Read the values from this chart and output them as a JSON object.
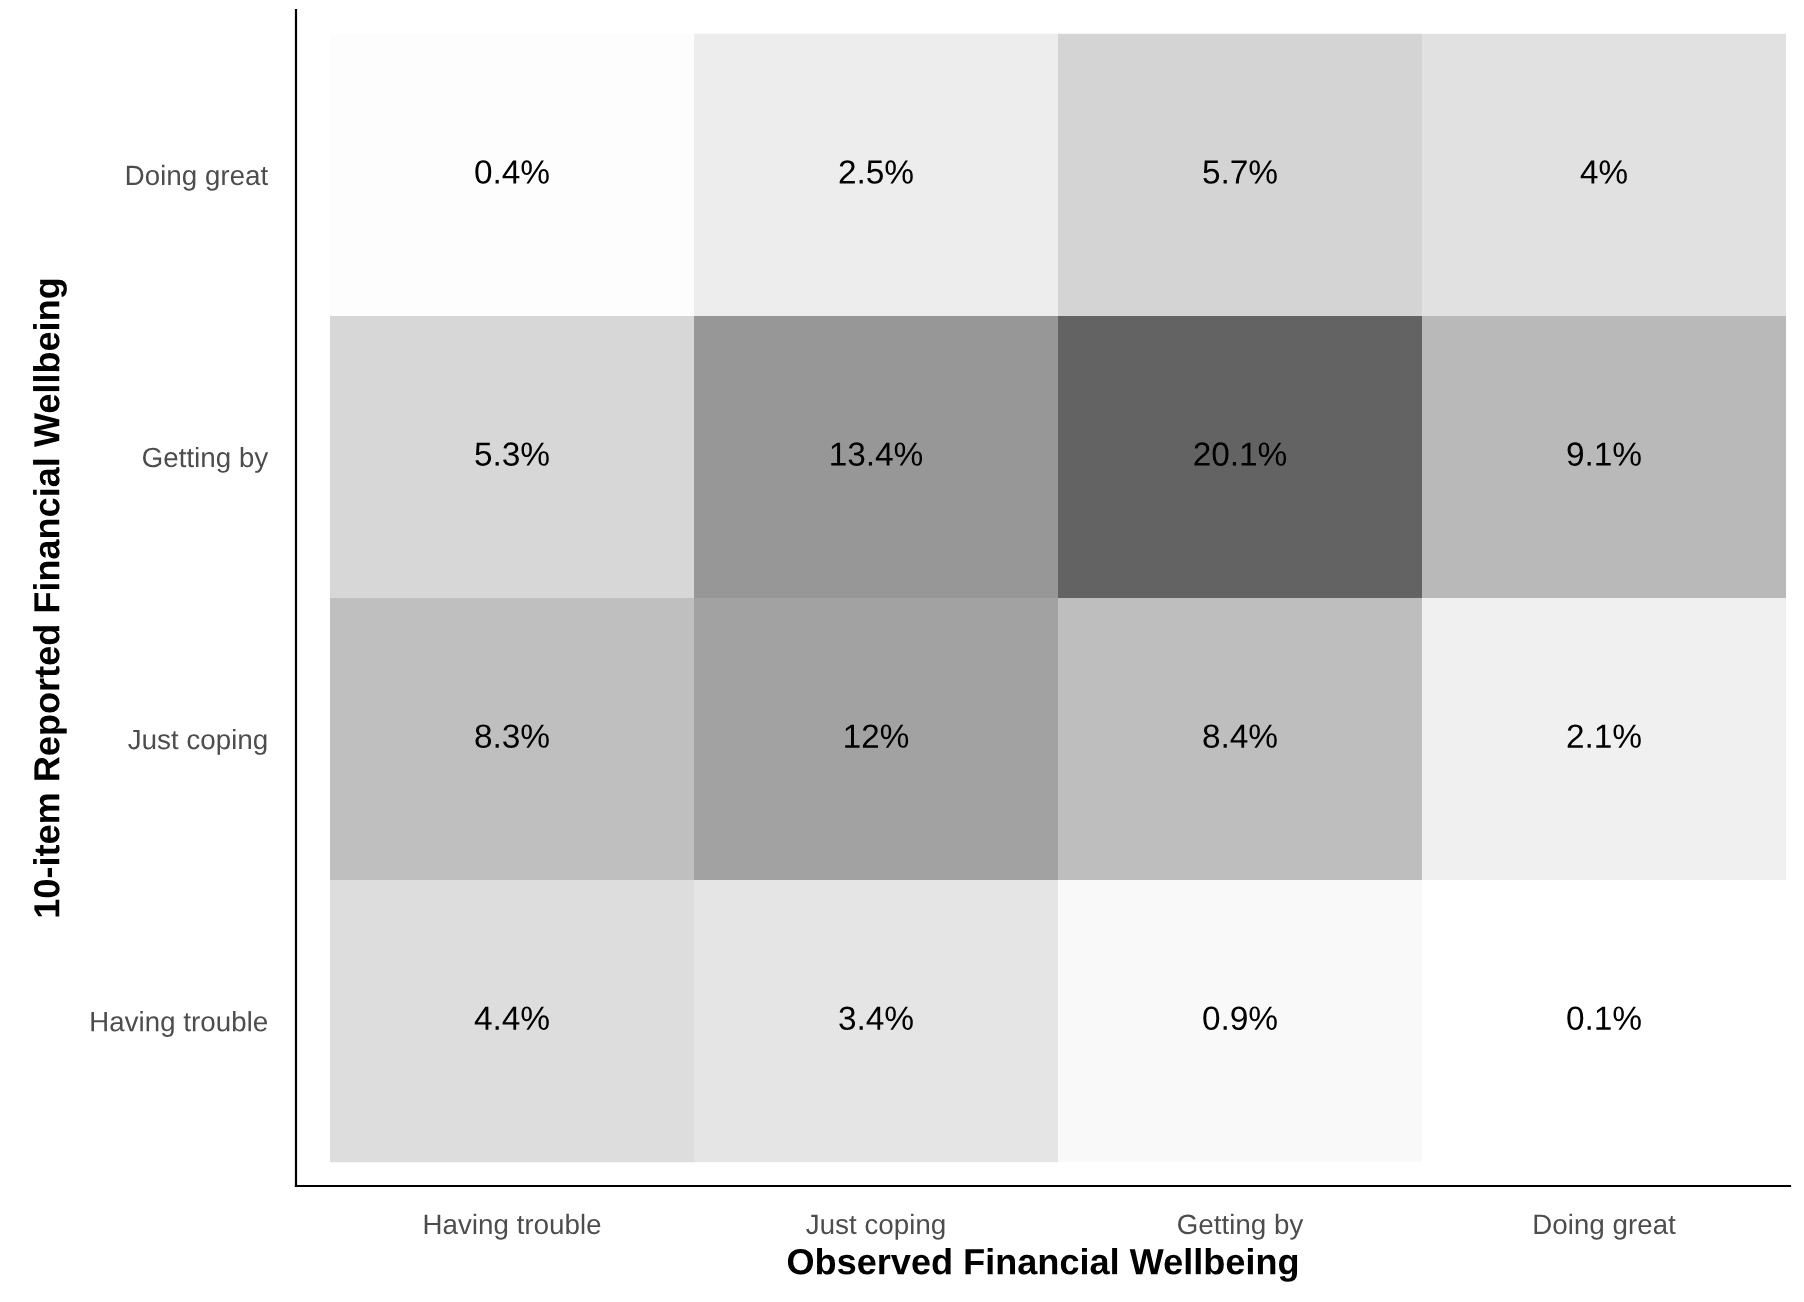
{
  "chart_data": {
    "type": "heatmap",
    "xlabel": "Observed Financial Wellbeing",
    "ylabel": "10-item Reported Financial Wellbeing",
    "categories": [
      "Having trouble",
      "Just coping",
      "Getting by",
      "Doing great"
    ],
    "y_categories": [
      "Doing great",
      "Getting by",
      "Just coping",
      "Having trouble"
    ],
    "cells": [
      [
        0.4,
        2.5,
        5.7,
        4
      ],
      [
        5.3,
        13.4,
        20.1,
        9.1
      ],
      [
        8.3,
        12,
        8.4,
        2.1
      ],
      [
        4.4,
        3.4,
        0.9,
        0.1
      ]
    ],
    "cell_labels": [
      [
        "0.4%",
        "2.5%",
        "5.7%",
        "4%"
      ],
      [
        "5.3%",
        "13.4%",
        "20.1%",
        "9.1%"
      ],
      [
        "8.3%",
        "12%",
        "8.4%",
        "2.1%"
      ],
      [
        "4.4%",
        "3.4%",
        "0.9%",
        "0.1%"
      ]
    ],
    "grid": false
  }
}
